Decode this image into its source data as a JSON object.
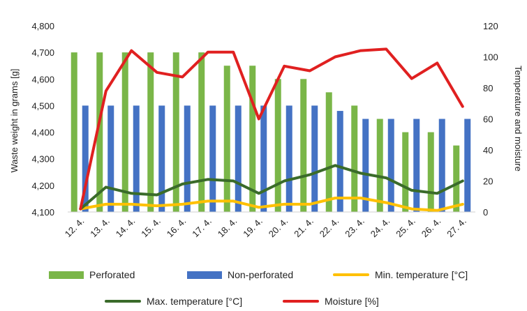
{
  "chart_data": {
    "type": "bar",
    "categories": [
      "12. 4.",
      "13. 4.",
      "14. 4.",
      "15. 4.",
      "16. 4.",
      "17. 4.",
      "18. 4.",
      "19. 4.",
      "20. 4.",
      "21. 4.",
      "22. 4.",
      "23. 4.",
      "24. 4.",
      "25. 4.",
      "26. 4.",
      "27. 4."
    ],
    "ylabel": "Waste weight in grams [g]",
    "y2label": "Temperature and moisture",
    "ylim": [
      4100,
      4800
    ],
    "y2lim": [
      0,
      120
    ],
    "yticks": [
      "4,100",
      "4,200",
      "4,300",
      "4,400",
      "4,500",
      "4,600",
      "4,700",
      "4,800"
    ],
    "y2ticks": [
      "0",
      "20",
      "40",
      "60",
      "80",
      "100",
      "120"
    ],
    "grid": false,
    "legend_position": "bottom",
    "bar_series": [
      {
        "name": "Perforated",
        "color": "#7ab648",
        "values": [
          4700,
          4700,
          4700,
          4700,
          4700,
          4700,
          4650,
          4650,
          4600,
          4600,
          4550,
          4500,
          4450,
          4400,
          4400,
          4350
        ]
      },
      {
        "name": "Non-perforated",
        "color": "#4472c4",
        "values": [
          4500,
          4500,
          4500,
          4500,
          4500,
          4500,
          4500,
          4500,
          4500,
          4500,
          4480,
          4450,
          4450,
          4450,
          4450,
          4450
        ]
      }
    ],
    "line_series": [
      {
        "name": "Min. temperature [°C]",
        "color": "#ffc000",
        "values": [
          2,
          5,
          5,
          4,
          5,
          7,
          7,
          3,
          5,
          5,
          9,
          9,
          6,
          2,
          1,
          5
        ]
      },
      {
        "name": "Max. temperature [°C]",
        "color": "#3a6b2a",
        "values": [
          2,
          16,
          12,
          11,
          18,
          21,
          20,
          12,
          20,
          24,
          30,
          25,
          22,
          14,
          12,
          20
        ]
      },
      {
        "name": "Moisture [%]",
        "color": "#e02020",
        "values": [
          2,
          78,
          104,
          90,
          87,
          103,
          103,
          60,
          94,
          91,
          100,
          104,
          105,
          86,
          96,
          68
        ]
      }
    ],
    "legend": [
      {
        "label": "Perforated",
        "kind": "bar",
        "color": "#7ab648"
      },
      {
        "label": "Non-perforated",
        "kind": "bar",
        "color": "#4472c4"
      },
      {
        "label": "Min. temperature [°C]",
        "kind": "line",
        "color": "#ffc000"
      },
      {
        "label": "Max. temperature [°C]",
        "kind": "line",
        "color": "#3a6b2a"
      },
      {
        "label": "Moisture [%]",
        "kind": "line",
        "color": "#e02020"
      }
    ]
  }
}
